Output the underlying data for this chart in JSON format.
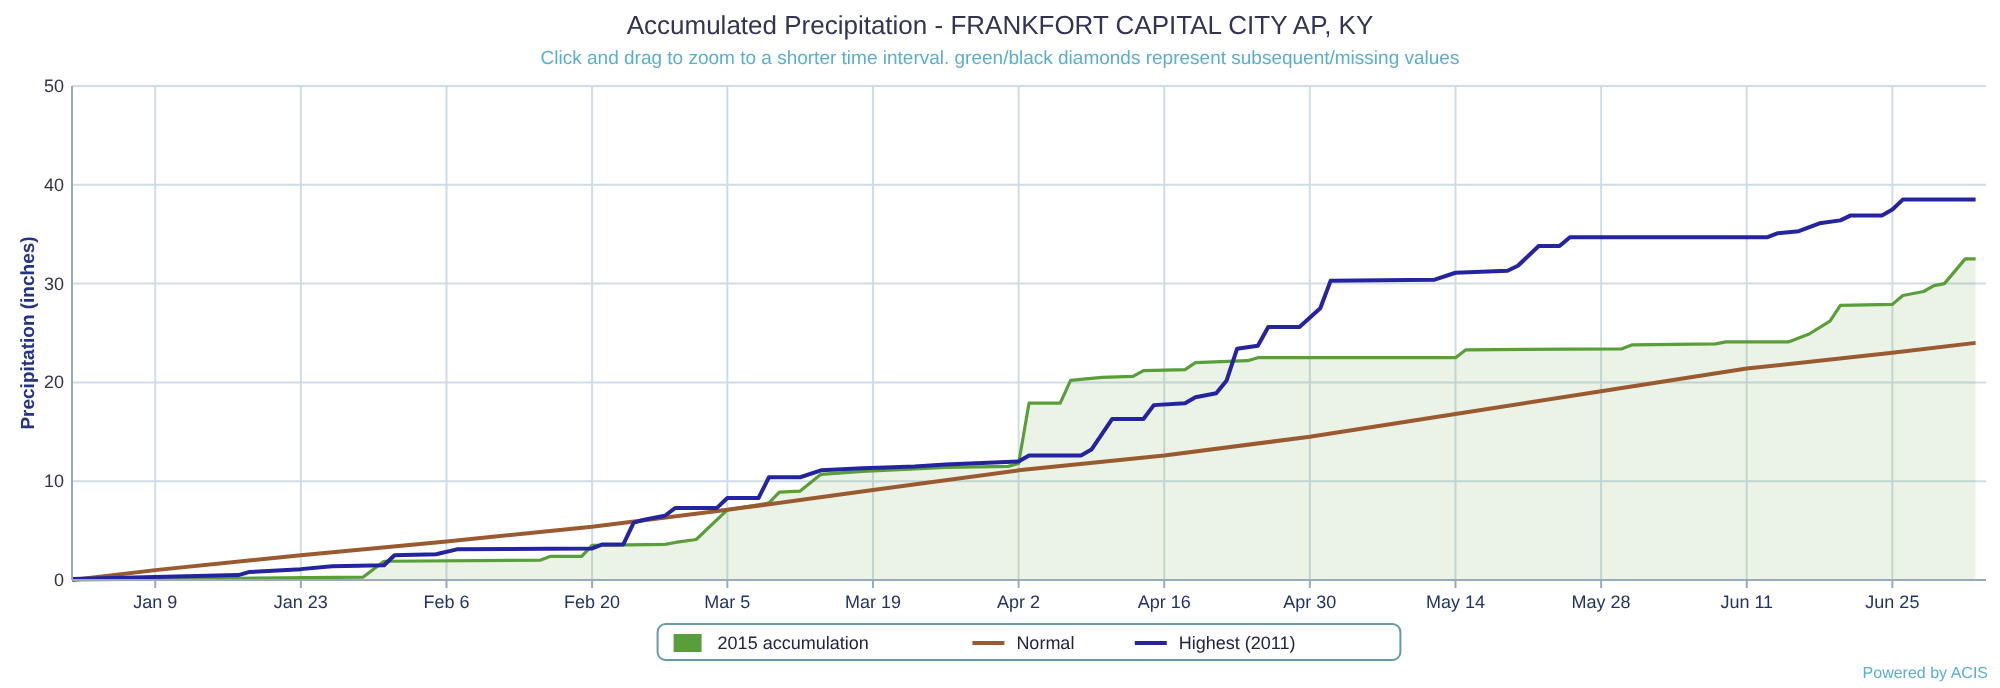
{
  "chart_data": {
    "type": "line",
    "title": "Accumulated Precipitation - FRANKFORT CAPITAL CITY AP, KY",
    "subtitle": "Click and drag to zoom to a shorter time interval. green/black diamonds represent subsequent/missing values",
    "ylabel": "Precipitation (inches)",
    "annotations": [
      "Powered by ACIS"
    ],
    "xlim": [
      "2015-01-01",
      "2015-07-04"
    ],
    "xticks": [
      {
        "value": "2015-01-09",
        "label": "Jan 9"
      },
      {
        "value": "2015-01-23",
        "label": "Jan 23"
      },
      {
        "value": "2015-02-06",
        "label": "Feb 6"
      },
      {
        "value": "2015-02-20",
        "label": "Feb 20"
      },
      {
        "value": "2015-03-05",
        "label": "Mar 5"
      },
      {
        "value": "2015-03-19",
        "label": "Mar 19"
      },
      {
        "value": "2015-04-02",
        "label": "Apr 2"
      },
      {
        "value": "2015-04-16",
        "label": "Apr 16"
      },
      {
        "value": "2015-04-30",
        "label": "Apr 30"
      },
      {
        "value": "2015-05-14",
        "label": "May 14"
      },
      {
        "value": "2015-05-28",
        "label": "May 28"
      },
      {
        "value": "2015-06-11",
        "label": "Jun 11"
      },
      {
        "value": "2015-06-25",
        "label": "Jun 25"
      }
    ],
    "ylim": [
      0,
      50
    ],
    "yticks": [
      0,
      10,
      20,
      30,
      40,
      50
    ],
    "grid": true,
    "legend": "bottom",
    "marker": "none",
    "series": [
      {
        "name": "2015 accumulation",
        "type": "area",
        "color": "#5a9e3a",
        "x": [
          "2015-01-01",
          "2015-01-29",
          "2015-01-31",
          "2015-02-15",
          "2015-02-16",
          "2015-02-19",
          "2015-02-20",
          "2015-02-27",
          "2015-02-28",
          "2015-03-02",
          "2015-03-05",
          "2015-03-08",
          "2015-03-09",
          "2015-03-10",
          "2015-03-12",
          "2015-03-14",
          "2015-03-18",
          "2015-03-26",
          "2015-04-01",
          "2015-04-02",
          "2015-04-03",
          "2015-04-06",
          "2015-04-07",
          "2015-04-10",
          "2015-04-13",
          "2015-04-14",
          "2015-04-18",
          "2015-04-19",
          "2015-04-24",
          "2015-04-25",
          "2015-05-14",
          "2015-05-15",
          "2015-05-30",
          "2015-05-31",
          "2015-06-08",
          "2015-06-09",
          "2015-06-15",
          "2015-06-17",
          "2015-06-19",
          "2015-06-20",
          "2015-06-25",
          "2015-06-26",
          "2015-06-28",
          "2015-06-29",
          "2015-06-30",
          "2015-07-02",
          "2015-07-03"
        ],
        "values": [
          0,
          0.3,
          1.9,
          2.0,
          2.4,
          2.4,
          3.5,
          3.6,
          3.8,
          4.1,
          7.1,
          7.6,
          7.8,
          8.9,
          9.0,
          10.7,
          11.0,
          11.4,
          11.5,
          11.8,
          17.9,
          17.9,
          20.2,
          20.5,
          20.6,
          21.2,
          21.3,
          22.0,
          22.2,
          22.5,
          22.5,
          23.3,
          23.4,
          23.8,
          23.9,
          24.1,
          24.1,
          24.9,
          26.2,
          27.8,
          27.9,
          28.8,
          29.2,
          29.8,
          30.0,
          32.5,
          32.5
        ]
      },
      {
        "name": "Normal",
        "color": "#9a5a30",
        "x": [
          "2015-01-01",
          "2015-01-09",
          "2015-01-23",
          "2015-02-06",
          "2015-02-20",
          "2015-03-05",
          "2015-03-19",
          "2015-04-02",
          "2015-04-16",
          "2015-04-30",
          "2015-05-14",
          "2015-05-28",
          "2015-06-11",
          "2015-06-25",
          "2015-07-03"
        ],
        "values": [
          0,
          1.0,
          2.5,
          3.9,
          5.4,
          7.1,
          9.1,
          11.1,
          12.6,
          14.5,
          16.8,
          19.1,
          21.4,
          23.0,
          24.0
        ]
      },
      {
        "name": "Highest (2011)",
        "color": "#2424a0",
        "x": [
          "2015-01-01",
          "2015-01-17",
          "2015-01-18",
          "2015-01-23",
          "2015-01-26",
          "2015-01-31",
          "2015-02-01",
          "2015-02-05",
          "2015-02-07",
          "2015-02-20",
          "2015-02-21",
          "2015-02-23",
          "2015-02-24",
          "2015-02-25",
          "2015-02-27",
          "2015-02-28",
          "2015-03-04",
          "2015-03-05",
          "2015-03-08",
          "2015-03-09",
          "2015-03-12",
          "2015-03-14",
          "2015-03-18",
          "2015-03-23",
          "2015-03-26",
          "2015-04-02",
          "2015-04-03",
          "2015-04-08",
          "2015-04-09",
          "2015-04-11",
          "2015-04-14",
          "2015-04-15",
          "2015-04-18",
          "2015-04-19",
          "2015-04-21",
          "2015-04-22",
          "2015-04-23",
          "2015-04-25",
          "2015-04-26",
          "2015-04-29",
          "2015-05-01",
          "2015-05-02",
          "2015-05-12",
          "2015-05-14",
          "2015-05-19",
          "2015-05-20",
          "2015-05-22",
          "2015-05-24",
          "2015-05-25",
          "2015-06-13",
          "2015-06-14",
          "2015-06-16",
          "2015-06-18",
          "2015-06-20",
          "2015-06-21",
          "2015-06-24",
          "2015-06-25",
          "2015-06-26",
          "2015-07-03"
        ],
        "values": [
          0.1,
          0.5,
          0.8,
          1.1,
          1.4,
          1.5,
          2.5,
          2.6,
          3.1,
          3.2,
          3.6,
          3.6,
          5.8,
          6.1,
          6.5,
          7.3,
          7.3,
          8.3,
          8.3,
          10.4,
          10.4,
          11.1,
          11.3,
          11.5,
          11.7,
          12.0,
          12.6,
          12.6,
          13.2,
          16.3,
          16.3,
          17.7,
          17.9,
          18.5,
          18.9,
          20.2,
          23.4,
          23.7,
          25.6,
          25.6,
          27.5,
          30.3,
          30.4,
          31.1,
          31.3,
          31.8,
          33.8,
          33.8,
          34.7,
          34.7,
          35.1,
          35.3,
          36.1,
          36.4,
          36.9,
          36.9,
          37.5,
          38.5,
          38.5
        ]
      }
    ]
  }
}
